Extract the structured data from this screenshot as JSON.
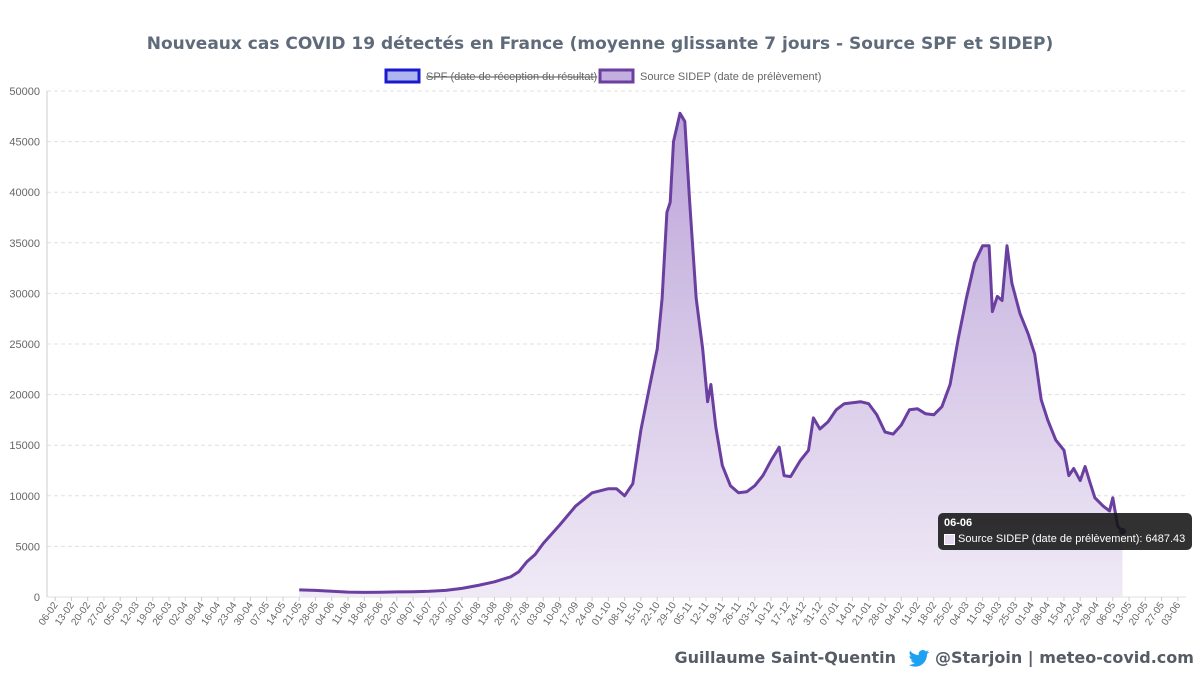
{
  "chart_data": {
    "type": "area",
    "title": "Nouveaux cas COVID 19 détectés en France (moyenne glissante 7 jours - Source SPF et SIDEP)",
    "ylim": [
      0,
      50000
    ],
    "y_ticks": [
      "0",
      "5000",
      "10000",
      "15000",
      "20000",
      "25000",
      "30000",
      "35000",
      "40000",
      "45000",
      "50000"
    ],
    "grid": true,
    "legend_position": "top",
    "x_tick_labels": [
      "06-02",
      "13-02",
      "20-02",
      "27-02",
      "05-03",
      "12-03",
      "19-03",
      "26-03",
      "02-04",
      "09-04",
      "16-04",
      "23-04",
      "30-04",
      "07-05",
      "14-05",
      "21-05",
      "28-05",
      "04-06",
      "11-06",
      "18-06",
      "25-06",
      "02-07",
      "09-07",
      "16-07",
      "23-07",
      "30-07",
      "06-08",
      "13-08",
      "20-08",
      "27-08",
      "03-09",
      "10-09",
      "17-09",
      "24-09",
      "01-10",
      "08-10",
      "15-10",
      "22-10",
      "29-10",
      "05-11",
      "12-11",
      "19-11",
      "26-11",
      "03-12",
      "10-12",
      "17-12",
      "24-12",
      "31-12",
      "07-01",
      "14-01",
      "21-01",
      "28-01",
      "04-02",
      "11-02",
      "18-02",
      "25-02",
      "04-03",
      "11-03",
      "18-03",
      "25-03",
      "01-04",
      "08-04",
      "15-04",
      "22-04",
      "29-04",
      "06-05",
      "13-05",
      "20-05",
      "27-05",
      "03-06"
    ],
    "series": [
      {
        "name": "SPF (date de réception du résultat)",
        "hidden": true,
        "color": "#1a1acc",
        "values": []
      },
      {
        "name": "Source SIDEP (date de prélèvement)",
        "hidden": false,
        "color": "#6a3fa0",
        "points": [
          [
            15,
            700
          ],
          [
            16,
            650
          ],
          [
            17,
            560
          ],
          [
            18,
            480
          ],
          [
            19,
            450
          ],
          [
            20,
            470
          ],
          [
            21,
            500
          ],
          [
            22,
            520
          ],
          [
            23,
            560
          ],
          [
            24,
            650
          ],
          [
            25,
            850
          ],
          [
            26,
            1150
          ],
          [
            27,
            1500
          ],
          [
            28,
            2000
          ],
          [
            28.5,
            2500
          ],
          [
            29,
            3500
          ],
          [
            29.5,
            4200
          ],
          [
            30,
            5300
          ],
          [
            31,
            7100
          ],
          [
            32,
            9000
          ],
          [
            33,
            10300
          ],
          [
            34,
            10700
          ],
          [
            34.5,
            10700
          ],
          [
            35,
            10000
          ],
          [
            35.5,
            11200
          ],
          [
            36,
            16500
          ],
          [
            36.5,
            20500
          ],
          [
            37,
            24500
          ],
          [
            37.3,
            29500
          ],
          [
            37.6,
            38000
          ],
          [
            37.8,
            39000
          ],
          [
            38,
            45000
          ],
          [
            38.4,
            47800
          ],
          [
            38.7,
            47000
          ],
          [
            39,
            39000
          ],
          [
            39.4,
            29500
          ],
          [
            39.8,
            24500
          ],
          [
            40.1,
            19300
          ],
          [
            40.3,
            21000
          ],
          [
            40.6,
            16800
          ],
          [
            41,
            13000
          ],
          [
            41.5,
            11000
          ],
          [
            42,
            10300
          ],
          [
            42.5,
            10400
          ],
          [
            43,
            11000
          ],
          [
            43.5,
            12000
          ],
          [
            44,
            13500
          ],
          [
            44.5,
            14800
          ],
          [
            44.8,
            12000
          ],
          [
            45.2,
            11900
          ],
          [
            45.8,
            13500
          ],
          [
            46.3,
            14500
          ],
          [
            46.6,
            17700
          ],
          [
            47,
            16600
          ],
          [
            47.5,
            17300
          ],
          [
            48,
            18500
          ],
          [
            48.5,
            19100
          ],
          [
            49,
            19200
          ],
          [
            49.5,
            19300
          ],
          [
            50,
            19100
          ],
          [
            50.5,
            18000
          ],
          [
            51,
            16300
          ],
          [
            51.5,
            16100
          ],
          [
            52,
            17000
          ],
          [
            52.5,
            18500
          ],
          [
            53,
            18600
          ],
          [
            53.5,
            18100
          ],
          [
            54,
            18000
          ],
          [
            54.5,
            18800
          ],
          [
            55,
            21000
          ],
          [
            55.5,
            25500
          ],
          [
            56,
            29500
          ],
          [
            56.5,
            33000
          ],
          [
            57,
            34700
          ],
          [
            57.4,
            34700
          ],
          [
            57.6,
            28200
          ],
          [
            57.9,
            29700
          ],
          [
            58.2,
            29300
          ],
          [
            58.5,
            34700
          ],
          [
            58.8,
            31000
          ],
          [
            59.3,
            28000
          ],
          [
            59.8,
            26000
          ],
          [
            60.2,
            24000
          ],
          [
            60.6,
            19500
          ],
          [
            61,
            17500
          ],
          [
            61.5,
            15500
          ],
          [
            62,
            14500
          ],
          [
            62.3,
            12000
          ],
          [
            62.6,
            12700
          ],
          [
            63,
            11500
          ],
          [
            63.3,
            12900
          ],
          [
            63.6,
            11300
          ],
          [
            63.9,
            9800
          ],
          [
            64.4,
            9000
          ],
          [
            64.8,
            8500
          ],
          [
            65,
            9800
          ],
          [
            65.3,
            7000
          ],
          [
            65.6,
            6487
          ]
        ]
      }
    ],
    "tooltip": {
      "title": "06-06",
      "label": "Source SIDEP (date de prélèvement): 6487.43"
    }
  },
  "footer": {
    "author": "Guillaume Saint-Quentin",
    "social": "@Starjoin | meteo-covid.com",
    "twitter_icon": "twitter-bird-icon",
    "twitter_color": "#1da1f2"
  },
  "colors": {
    "series_line": "#6a3fa0",
    "series_fill_top": "#b89fd6",
    "series_fill_bottom": "#eee7f5",
    "spf_box_fill": "#aeb6f0",
    "spf_box_border": "#1a1acc",
    "grid": "#e0e0e0"
  }
}
